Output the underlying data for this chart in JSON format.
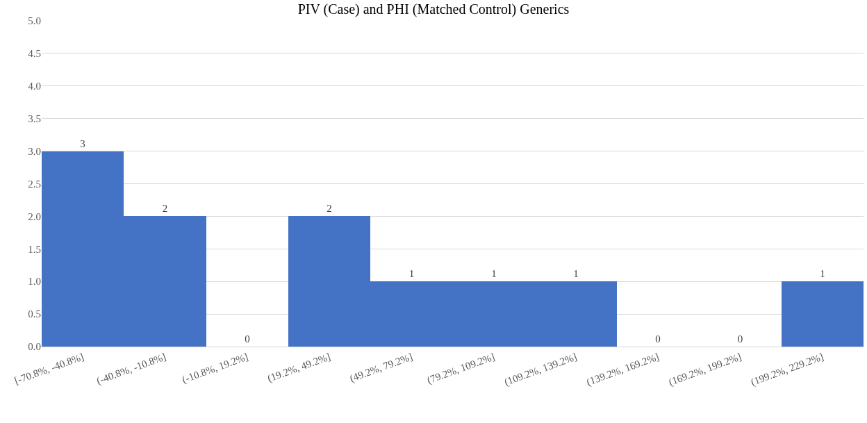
{
  "chart_data": {
    "type": "bar",
    "title": "PIV (Case) and PHI (Matched Control) Generics",
    "categories": [
      "[-70.8%, -40.8%]",
      "(-40.8%, -10.8%]",
      "(-10.8%, 19.2%]",
      "(19.2%, 49.2%]",
      "(49.2%, 79.2%]",
      "(79.2%, 109.2%]",
      "(109.2%, 139.2%]",
      "(139.2%, 169.2%]",
      "(169.2%, 199.2%]",
      "(199.2%, 229.2%]"
    ],
    "values": [
      3,
      2,
      0,
      2,
      1,
      1,
      1,
      0,
      0,
      1
    ],
    "color": "#4472c4",
    "ylim": [
      0,
      5
    ],
    "yticks": [
      {
        "value": 0,
        "label": "0.0"
      },
      {
        "value": 0.5,
        "label": "0.5"
      },
      {
        "value": 1,
        "label": "1.0"
      },
      {
        "value": 1.5,
        "label": "1.5"
      },
      {
        "value": 2,
        "label": "2.0"
      },
      {
        "value": 2.5,
        "label": "2.5"
      },
      {
        "value": 3,
        "label": "3.0"
      },
      {
        "value": 3.5,
        "label": "3.5"
      },
      {
        "value": 4,
        "label": "4.0"
      },
      {
        "value": 4.5,
        "label": "4.5"
      },
      {
        "value": 5,
        "label": "5.0"
      }
    ],
    "grid": "y",
    "data_labels": true,
    "legend": false
  }
}
